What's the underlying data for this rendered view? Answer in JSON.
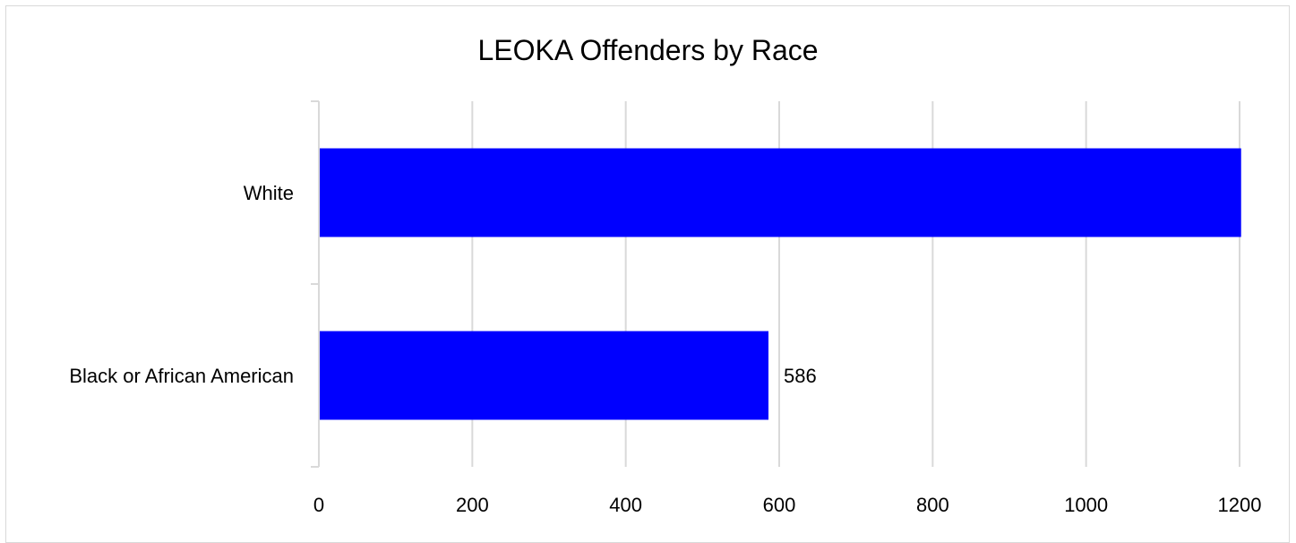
{
  "chart_data": {
    "type": "bar",
    "orientation": "horizontal",
    "title": "LEOKA Offenders by Race",
    "categories": [
      "White",
      "Black or African American"
    ],
    "values": [
      1202,
      586
    ],
    "data_labels": [
      "",
      "586"
    ],
    "xlabel": "",
    "ylabel": "",
    "xlim": [
      0,
      1200
    ],
    "xticks": [
      "0",
      "200",
      "400",
      "600",
      "800",
      "1000",
      "1200"
    ],
    "grid": true,
    "legend": "none",
    "colors": {
      "bar": "#0000ff",
      "grid": "#d9d9d9",
      "text": "#000000"
    }
  }
}
